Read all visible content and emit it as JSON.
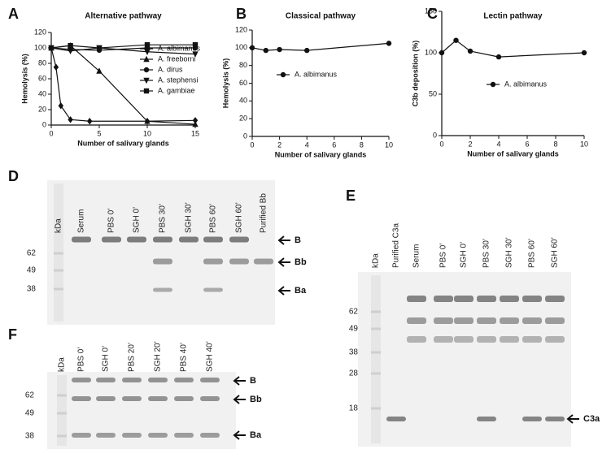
{
  "chart_data": [
    {
      "type": "line",
      "panel": "A",
      "title": "Alternative pathway",
      "y_label": "Hemolysis (%)",
      "x_label": "Number of salivary glands",
      "xlim": [
        0,
        15
      ],
      "xticks": [
        0,
        5,
        10,
        15
      ],
      "ylim": [
        0,
        120
      ],
      "yticks": [
        0,
        20,
        40,
        60,
        80,
        100,
        120
      ],
      "series": [
        {
          "name": "A. albimanus",
          "marker": "diamond",
          "color": "#111111",
          "x": [
            0,
            0.5,
            1,
            2,
            4,
            10,
            15
          ],
          "values": [
            100,
            75,
            25,
            7,
            5,
            5,
            6
          ]
        },
        {
          "name": "A. freeborni",
          "marker": "triangle-up",
          "color": "#111111",
          "x": [
            0,
            2,
            5,
            10,
            15
          ],
          "values": [
            100,
            103,
            70,
            5,
            1
          ]
        },
        {
          "name": "A. dirus",
          "marker": "circle",
          "color": "#111111",
          "x": [
            0,
            2,
            5,
            10,
            15
          ],
          "values": [
            100,
            98,
            97,
            100,
            100
          ]
        },
        {
          "name": "A. stephensi",
          "marker": "triangle-down",
          "color": "#111111",
          "x": [
            0,
            2,
            5,
            10,
            15
          ],
          "values": [
            100,
            96,
            100,
            95,
            92
          ]
        },
        {
          "name": "A. gambiae",
          "marker": "square",
          "color": "#111111",
          "x": [
            0,
            2,
            5,
            10,
            15
          ],
          "values": [
            100,
            103,
            100,
            104,
            104
          ]
        }
      ]
    },
    {
      "type": "line",
      "panel": "B",
      "title": "Classical pathway",
      "y_label": "Hemolysis (%)",
      "x_label": "Number of salivary glands",
      "xlim": [
        0,
        10
      ],
      "xticks": [
        0,
        2,
        4,
        6,
        8,
        10
      ],
      "ylim": [
        0,
        120
      ],
      "yticks": [
        0,
        20,
        40,
        60,
        80,
        100,
        120
      ],
      "series": [
        {
          "name": "A. albimanus",
          "marker": "circle",
          "color": "#111111",
          "x": [
            0,
            1,
            2,
            4,
            10
          ],
          "values": [
            100,
            97,
            98,
            97,
            105
          ]
        }
      ]
    },
    {
      "type": "line",
      "panel": "C",
      "title": "Lectin pathway",
      "y_label": "C3b deposition (%)",
      "x_label": "Number of salivary glands",
      "xlim": [
        0,
        10
      ],
      "xticks": [
        0,
        2,
        4,
        6,
        8,
        10
      ],
      "ylim": [
        0,
        150
      ],
      "yticks": [
        0,
        50,
        100,
        150
      ],
      "series": [
        {
          "name": "A. albimanus",
          "marker": "circle",
          "color": "#111111",
          "x": [
            0,
            1,
            2,
            4,
            10
          ],
          "values": [
            100,
            115,
            102,
            95,
            100
          ]
        }
      ]
    }
  ],
  "blots": [
    {
      "panel": "D",
      "unit": "kDa",
      "lanes": [
        "Serum",
        "PBS 0’",
        "SGH 0’",
        "PBS 30’",
        "SGH 30’",
        "PBS 60’",
        "SGH 60’",
        "Purified Bb"
      ],
      "markers": [
        "62",
        "49",
        "38"
      ],
      "arrows": [
        "B",
        "Bb",
        "Ba"
      ]
    },
    {
      "panel": "E",
      "unit": "kDa",
      "lanes": [
        "Purified C3a",
        "Serum",
        "PBS 0’",
        "SGH 0’",
        "PBS 30’",
        "SGH 30’",
        "PBS 60’",
        "SGH 60’"
      ],
      "markers": [
        "62",
        "49",
        "38",
        "28",
        "18"
      ],
      "arrows": [
        "C3a"
      ]
    },
    {
      "panel": "F",
      "unit": "kDa",
      "lanes": [
        "PBS 0’",
        "SGH 0’",
        "PBS 20’",
        "SGH 20’",
        "PBS 40’",
        "SGH 40’"
      ],
      "markers": [
        "62",
        "49",
        "38"
      ],
      "arrows": [
        "B",
        "Bb",
        "Ba"
      ]
    }
  ]
}
